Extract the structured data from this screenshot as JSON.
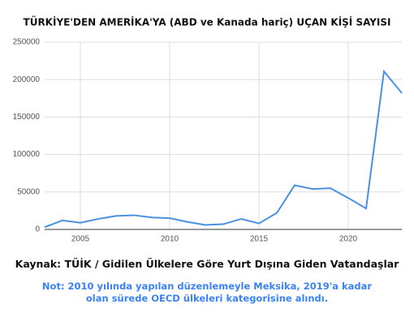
{
  "chart_data": {
    "type": "line",
    "title": "TÜRKİYE'DEN AMERİKA'YA (ABD ve Kanada hariç) UÇAN KİŞİ SAYISI",
    "x": [
      2003,
      2004,
      2005,
      2006,
      2007,
      2008,
      2009,
      2010,
      2011,
      2012,
      2013,
      2014,
      2015,
      2016,
      2017,
      2018,
      2019,
      2020,
      2021,
      2022,
      2023
    ],
    "values": [
      3000,
      12000,
      9000,
      14000,
      18000,
      19000,
      16000,
      15000,
      10000,
      6000,
      7000,
      14000,
      8000,
      22000,
      59000,
      54000,
      55000,
      42000,
      28000,
      211000,
      182000
    ],
    "color": "#4a90e2",
    "xlim": [
      2003,
      2023
    ],
    "xticks": [
      2005,
      2010,
      2015,
      2020
    ],
    "ylim": [
      0,
      250000
    ],
    "yticks": [
      0,
      50000,
      100000,
      150000,
      200000,
      250000
    ],
    "grid": true,
    "source": "Kaynak: TÜİK / Gidilen Ülkelere Göre Yurt Dışına Giden Vatandaşlar",
    "note": "Not: 2010 yılında yapılan düzenlemeyle Meksika, 2019'a kadar olan sürede OECD ülkeleri kategorisine alındı."
  }
}
